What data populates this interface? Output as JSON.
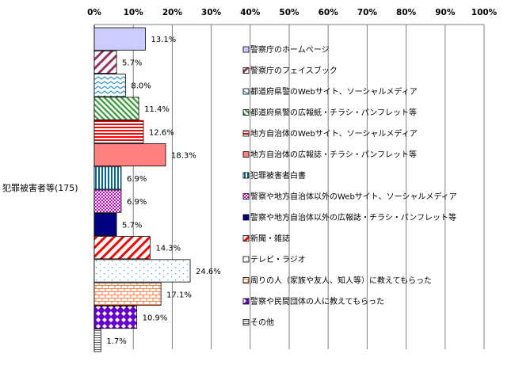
{
  "chart_data": {
    "type": "bar",
    "orientation": "horizontal",
    "category": "犯罪被害者等(175)",
    "xlim": [
      0,
      100
    ],
    "x_ticks": [
      "0%",
      "10%",
      "20%",
      "30%",
      "40%",
      "50%",
      "60%",
      "70%",
      "80%",
      "90%",
      "100%"
    ],
    "x_axis_position": "top",
    "grid": true,
    "legend_position": "right",
    "series": [
      {
        "name": "警察庁のホームページ",
        "value": 13.1,
        "label": "13.1%",
        "color": "#ccccff",
        "pattern": "solid"
      },
      {
        "name": "警察庁のフェイスブック",
        "value": 5.7,
        "label": "5.7%",
        "color": "#993366",
        "pattern": "wide-diagonal"
      },
      {
        "name": "都道府県警のWebサイト、ソーシャルメディア",
        "value": 8.0,
        "label": "8.0%",
        "color": "#3399cc",
        "pattern": "zigzag"
      },
      {
        "name": "都道府県警の広報紙・チラシ・パンフレット等",
        "value": 11.4,
        "label": "11.4%",
        "color": "#339933",
        "pattern": "diagonal"
      },
      {
        "name": "地方自治体のWebサイト、ソーシャルメディア",
        "value": 12.6,
        "label": "12.6%",
        "color": "#ff0000",
        "pattern": "horizontal-lines"
      },
      {
        "name": "地方自治体の広報誌・チラシ・パンフレット等",
        "value": 18.3,
        "label": "18.3%",
        "color": "#ff8080",
        "pattern": "solid"
      },
      {
        "name": "犯罪被害者白書",
        "value": 6.9,
        "label": "6.9%",
        "color": "#006699",
        "pattern": "vertical-lines"
      },
      {
        "name": "警察や地方自治体以外のWebサイト、ソーシャルメディア",
        "value": 6.9,
        "label": "6.9%",
        "color": "#cc00cc",
        "pattern": "dots"
      },
      {
        "name": "警察や地方自治体以外の広報誌・チラシ・パンフレット等",
        "value": 5.7,
        "label": "5.7%",
        "color": "#000080",
        "pattern": "solid"
      },
      {
        "name": "新聞・雑誌",
        "value": 14.3,
        "label": "14.3%",
        "color": "#ff0000",
        "pattern": "wide-diagonal"
      },
      {
        "name": "テレビ・ラジオ",
        "value": 24.6,
        "label": "24.6%",
        "color": "#3399cc",
        "pattern": "sparse-dots"
      },
      {
        "name": "周りの人（家族や友人、知人等）に教えてもらった",
        "value": 17.1,
        "label": "17.1%",
        "color": "#ff8040",
        "pattern": "brick"
      },
      {
        "name": "警察や民間団体の人に教えてもらった",
        "value": 10.9,
        "label": "10.9%",
        "color": "#6600cc",
        "pattern": "diamonds"
      },
      {
        "name": "その他",
        "value": 1.7,
        "label": "1.7%",
        "color": "#666666",
        "pattern": "horizontal-lines"
      }
    ]
  }
}
